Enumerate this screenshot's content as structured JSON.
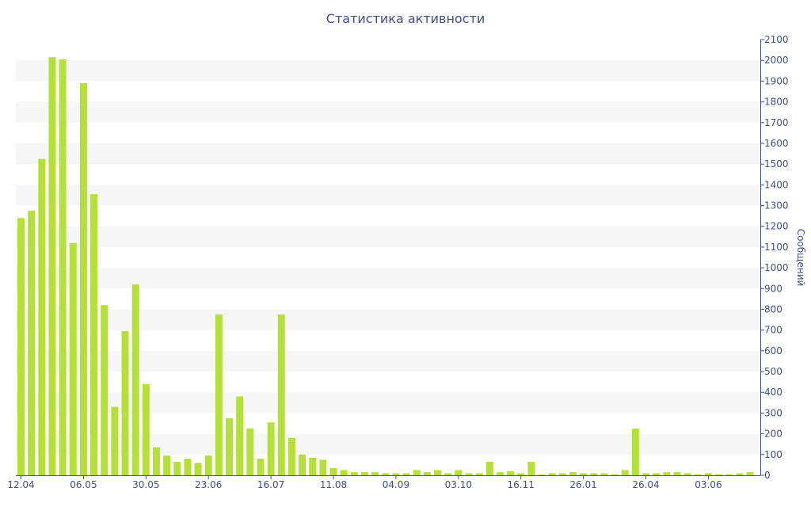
{
  "chart_data": {
    "type": "bar",
    "title": "Статистика активности",
    "ylabel": "Сообщений",
    "xlabel": "",
    "ylim": [
      0,
      2100
    ],
    "ytick_step": 100,
    "y_axis_side": "right",
    "grid": "alternating horizontal bands",
    "legend": "none",
    "bar_color": "#b5e03a",
    "band_color": "#f6f6f6",
    "text_color": "#3e4f87",
    "x_tick_labels": [
      {
        "index": 0,
        "label": "12.04"
      },
      {
        "index": 6,
        "label": "06.05"
      },
      {
        "index": 12,
        "label": "30.05"
      },
      {
        "index": 18,
        "label": "23.06"
      },
      {
        "index": 24,
        "label": "16.07"
      },
      {
        "index": 30,
        "label": "11.08"
      },
      {
        "index": 36,
        "label": "04.09"
      },
      {
        "index": 42,
        "label": "03.10"
      },
      {
        "index": 48,
        "label": "16.11"
      },
      {
        "index": 54,
        "label": "26.01"
      },
      {
        "index": 60,
        "label": "26.04"
      },
      {
        "index": 66,
        "label": "03.06"
      }
    ],
    "values": [
      1240,
      1275,
      1525,
      2015,
      2005,
      1120,
      1890,
      1355,
      820,
      330,
      695,
      920,
      440,
      135,
      95,
      65,
      80,
      60,
      95,
      775,
      275,
      380,
      225,
      80,
      255,
      775,
      180,
      100,
      85,
      75,
      35,
      25,
      15,
      15,
      15,
      10,
      10,
      10,
      25,
      15,
      25,
      10,
      25,
      10,
      10,
      65,
      15,
      20,
      10,
      65,
      5,
      10,
      10,
      15,
      10,
      10,
      10,
      5,
      25,
      225,
      10,
      10,
      15,
      15,
      10,
      5,
      10,
      5,
      5,
      10,
      15
    ]
  }
}
